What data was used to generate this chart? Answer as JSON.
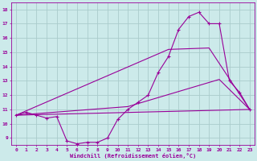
{
  "xlabel": "Windchill (Refroidissement éolien,°C)",
  "background_color": "#cceaea",
  "line_color": "#990099",
  "grid_color": "#aacccc",
  "xlim": [
    -0.5,
    23.5
  ],
  "ylim": [
    8.5,
    18.5
  ],
  "yticks": [
    9,
    10,
    11,
    12,
    13,
    14,
    15,
    16,
    17,
    18
  ],
  "xticks": [
    0,
    1,
    2,
    3,
    4,
    5,
    6,
    7,
    8,
    9,
    10,
    11,
    12,
    13,
    14,
    15,
    16,
    17,
    18,
    19,
    20,
    21,
    22,
    23
  ],
  "line1_x": [
    0,
    1,
    2,
    3,
    4,
    5,
    6,
    7,
    8,
    9,
    10,
    11,
    12,
    13,
    14,
    15,
    16,
    17,
    18,
    19,
    20,
    21,
    22,
    23
  ],
  "line1_y": [
    10.6,
    10.8,
    10.6,
    10.4,
    10.5,
    8.8,
    8.6,
    8.7,
    8.7,
    9.0,
    10.3,
    11.0,
    11.5,
    12.0,
    13.6,
    14.7,
    16.6,
    17.5,
    17.8,
    17.0,
    17.0,
    13.0,
    12.2,
    11.0
  ],
  "line3_x": [
    0,
    23
  ],
  "line3_y": [
    10.6,
    11.0
  ],
  "line4_x": [
    0,
    15,
    19,
    23
  ],
  "line4_y": [
    10.6,
    15.2,
    15.3,
    11.0
  ],
  "line5_x": [
    0,
    11,
    20,
    23
  ],
  "line5_y": [
    10.6,
    11.2,
    13.1,
    11.0
  ]
}
